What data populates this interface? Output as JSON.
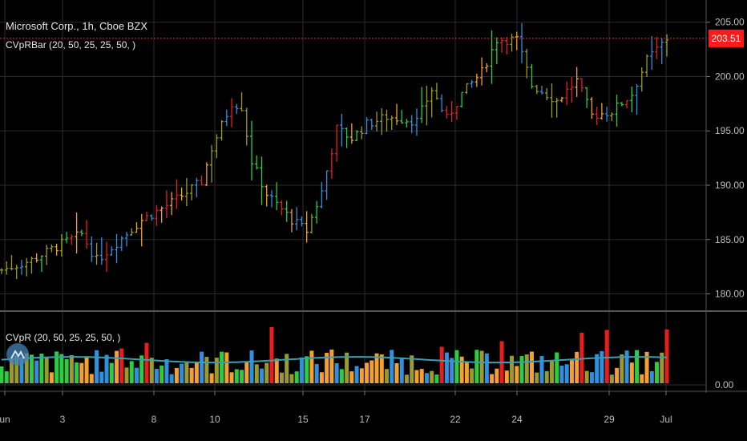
{
  "header": {
    "title": "Microsoft Corp., 1h, Cboe BZX",
    "indicator_main": "CVpRBar (20, 50, 25, 25, 50, )",
    "indicator_sub": "CVpR (20, 50, 25, 25, 50, )"
  },
  "colors": {
    "background": "#000000",
    "grid": "#2b2b2b",
    "last_price_line": "#ff2020",
    "last_price_badge": "#ff1a1a",
    "blue": "#2f8fe0",
    "green": "#2ecc40",
    "olive": "#9a9a2e",
    "orange": "#f2a030",
    "red": "#e81e1e",
    "volume_ma": "#3a9fb0"
  },
  "chart_data": {
    "type": "bar",
    "title": "Microsoft Corp., 1h, Cboe BZX",
    "last_price": "203.51",
    "price_axis": {
      "ticks": [
        "205.00",
        "200.00",
        "195.00",
        "190.00",
        "185.00",
        "180.00"
      ],
      "ylim": [
        179.3,
        205.2
      ]
    },
    "indicator_axis": {
      "ticks": [
        "0.00"
      ]
    },
    "x_ticks": [
      "un",
      "3",
      "8",
      "10",
      "15",
      "17",
      "22",
      "24",
      "29",
      "Jul"
    ],
    "price_anchors": [
      {
        "bar": 0,
        "price": 182.2
      },
      {
        "bar": 6,
        "price": 183.1
      },
      {
        "bar": 12,
        "price": 184.6
      },
      {
        "bar": 16,
        "price": 185.5
      },
      {
        "bar": 19,
        "price": 183.1
      },
      {
        "bar": 22,
        "price": 184.3
      },
      {
        "bar": 28,
        "price": 186.8
      },
      {
        "bar": 34,
        "price": 188.4
      },
      {
        "bar": 40,
        "price": 190.3
      },
      {
        "bar": 42,
        "price": 193.4
      },
      {
        "bar": 46,
        "price": 197.6
      },
      {
        "bar": 48,
        "price": 197.2
      },
      {
        "bar": 50,
        "price": 192.2
      },
      {
        "bar": 53,
        "price": 189.2
      },
      {
        "bar": 58,
        "price": 186.8
      },
      {
        "bar": 61,
        "price": 185.8
      },
      {
        "bar": 64,
        "price": 189.4
      },
      {
        "bar": 67,
        "price": 195.2
      },
      {
        "bar": 70,
        "price": 194.3
      },
      {
        "bar": 73,
        "price": 195.6
      },
      {
        "bar": 77,
        "price": 196.3
      },
      {
        "bar": 83,
        "price": 195.9
      },
      {
        "bar": 86,
        "price": 198.8
      },
      {
        "bar": 89,
        "price": 196.1
      },
      {
        "bar": 92,
        "price": 198.4
      },
      {
        "bar": 96,
        "price": 200.4
      },
      {
        "bar": 99,
        "price": 203.4
      },
      {
        "bar": 103,
        "price": 203.4
      },
      {
        "bar": 106,
        "price": 199.2
      },
      {
        "bar": 111,
        "price": 197.8
      },
      {
        "bar": 115,
        "price": 199.6
      },
      {
        "bar": 118,
        "price": 196.4
      },
      {
        "bar": 122,
        "price": 196.8
      },
      {
        "bar": 126,
        "price": 198.4
      },
      {
        "bar": 129,
        "price": 201.5
      },
      {
        "bar": 133,
        "price": 203.5
      }
    ],
    "volume_bars": [
      {
        "bar": 0,
        "value": 0.3,
        "color": "green"
      },
      {
        "bar": 14,
        "value": 0.5,
        "color": "olive"
      },
      {
        "bar": 24,
        "value": 0.62,
        "color": "red"
      },
      {
        "bar": 29,
        "value": 0.72,
        "color": "red"
      },
      {
        "bar": 45,
        "value": 0.55,
        "color": "orange"
      },
      {
        "bar": 54,
        "value": 1.0,
        "color": "red"
      },
      {
        "bar": 66,
        "value": 0.6,
        "color": "orange"
      },
      {
        "bar": 88,
        "value": 0.65,
        "color": "red"
      },
      {
        "bar": 100,
        "value": 0.75,
        "color": "red"
      },
      {
        "bar": 116,
        "value": 0.9,
        "color": "red"
      },
      {
        "bar": 121,
        "value": 0.95,
        "color": "red"
      },
      {
        "bar": 133,
        "value": 0.96,
        "color": "red"
      }
    ],
    "volume_ma_level": 0.42
  }
}
